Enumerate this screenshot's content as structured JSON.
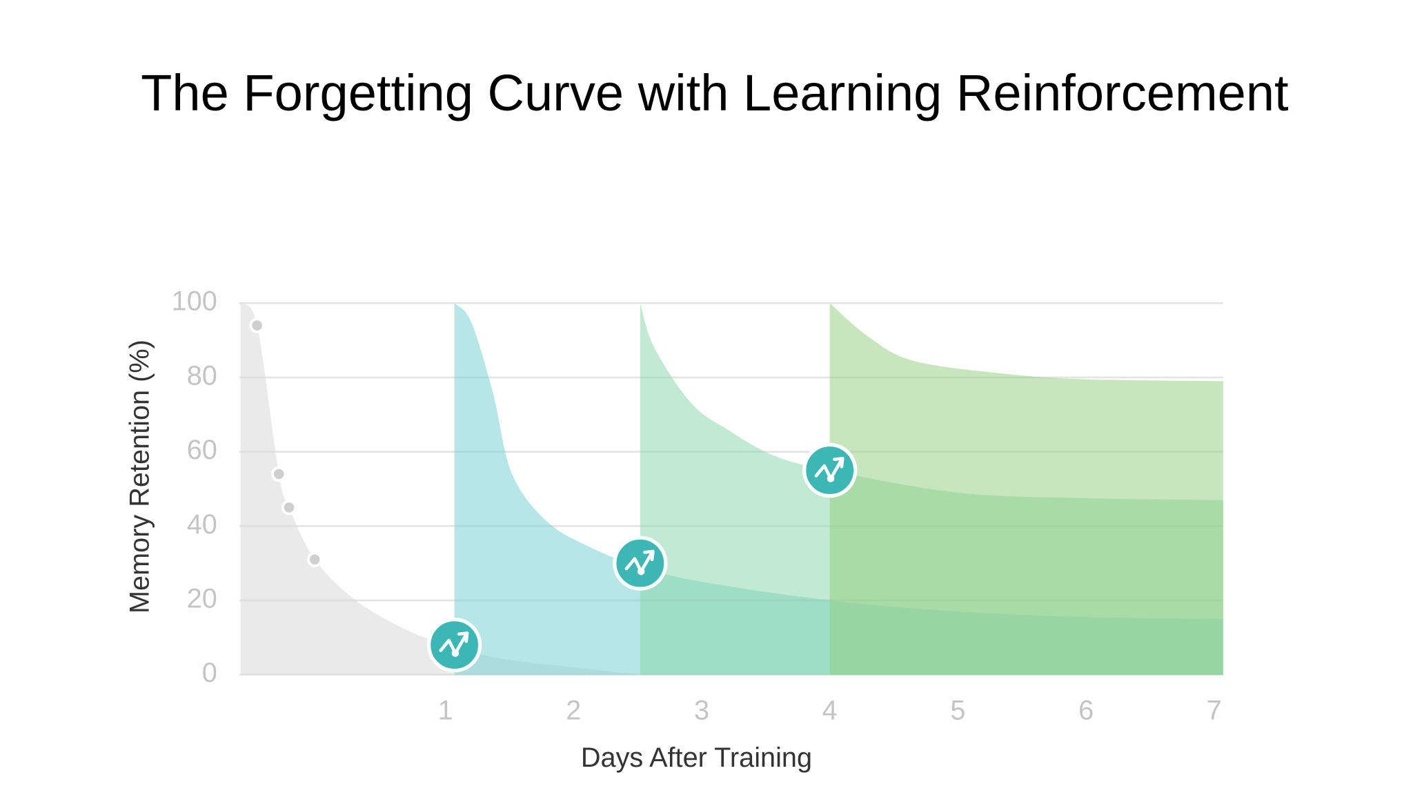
{
  "chart_data": {
    "type": "area",
    "title": "The Forgetting Curve with Learning Reinforcement",
    "x_label": "Days After Training",
    "y_label": "Memory Retention (%)",
    "xlim": [
      -0.61,
      7.07
    ],
    "xticks": [
      1,
      2,
      3,
      4,
      5,
      6,
      7
    ],
    "ylim": [
      0,
      100
    ],
    "yticks": [
      0,
      20,
      40,
      60,
      80,
      100
    ],
    "grid": true,
    "series": [
      {
        "color": "#dcdcdc",
        "x": [
          -0.6,
          -0.47,
          -0.3,
          -0.22,
          -0.02,
          0.3,
          0.7,
          1.1,
          1.5,
          2.0,
          2.52
        ],
        "values": [
          100,
          94,
          54,
          45,
          31,
          20,
          12,
          7,
          4,
          2,
          0
        ]
      },
      {
        "color": "#6fcdd3",
        "x": [
          1.07,
          1.2,
          1.37,
          1.52,
          1.8,
          2.15,
          2.52,
          3,
          4,
          5,
          6,
          7.07
        ],
        "values": [
          100,
          95,
          76,
          54,
          41,
          34,
          29,
          25,
          20,
          17,
          15.5,
          15
        ]
      },
      {
        "color": "#85d3a3",
        "x": [
          2.52,
          2.63,
          2.92,
          3.2,
          3.56,
          4.0,
          5,
          6,
          7.07
        ],
        "values": [
          100,
          88,
          73,
          66,
          59,
          55,
          49,
          47.5,
          47
        ]
      },
      {
        "color": "#8fcd7e",
        "x": [
          4.0,
          4.3,
          4.65,
          5.36,
          6,
          7.07
        ],
        "values": [
          100,
          91,
          84.5,
          81,
          79.5,
          79
        ]
      }
    ],
    "markers": {
      "x": [
        -0.47,
        -0.3,
        -0.22,
        -0.02
      ],
      "y": [
        94,
        54,
        45,
        31
      ]
    },
    "reinforcements": {
      "x": [
        1.07,
        2.52,
        4.0
      ],
      "y": [
        8,
        30,
        55
      ]
    }
  }
}
